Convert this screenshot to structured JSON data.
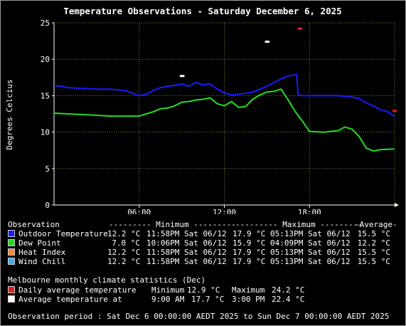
{
  "title": "Temperature Observations - Saturday December 6, 2025",
  "colors": {
    "outdoor": "#1a1aff",
    "dew": "#22dd22",
    "heat": "#ff8833",
    "wind": "#44aaee",
    "daily_avg": "#dd2222",
    "avg_at": "#ffffff",
    "grid": "#6a8a3a",
    "axis": "#ffffff"
  },
  "chart_data": {
    "type": "line",
    "ylabel": "Degrees Celcius",
    "ylim": [
      0,
      25
    ],
    "yticks": [
      0,
      5,
      10,
      15,
      20,
      25
    ],
    "xlim": [
      0,
      24
    ],
    "xticks": [
      {
        "x": 6,
        "label": "06:00"
      },
      {
        "x": 12,
        "label": "12:00"
      },
      {
        "x": 18,
        "label": "18:00"
      }
    ],
    "grid": true,
    "series": [
      {
        "name": "Outdoor Temperature",
        "color_key": "outdoor",
        "x": [
          0,
          0.5,
          1,
          2,
          3,
          4,
          5,
          6,
          6.5,
          7,
          7.5,
          8,
          8.5,
          9,
          9.5,
          10,
          10.5,
          11,
          11.5,
          12,
          12.5,
          13,
          13.5,
          14,
          14.5,
          15,
          15.5,
          16,
          16.5,
          16.8,
          17.1,
          17.2,
          17.5,
          18,
          19,
          20,
          21,
          21.5,
          22,
          22.5,
          23,
          23.5,
          23.98
        ],
        "y": [
          16.4,
          16.3,
          16.1,
          16.0,
          15.9,
          15.9,
          15.7,
          15.0,
          15.2,
          15.7,
          16.1,
          16.3,
          16.4,
          16.6,
          16.3,
          16.8,
          16.5,
          16.6,
          15.9,
          15.4,
          15.1,
          15.2,
          15.3,
          15.5,
          15.9,
          16.3,
          16.8,
          17.3,
          17.7,
          17.8,
          17.9,
          15.1,
          15.0,
          15.0,
          15.0,
          15.0,
          14.8,
          14.6,
          14.0,
          13.6,
          13.1,
          12.8,
          12.2
        ]
      },
      {
        "name": "Dew Point",
        "color_key": "dew",
        "x": [
          0,
          1,
          2,
          3,
          4,
          5,
          6,
          6.5,
          7,
          7.5,
          8,
          8.5,
          9,
          9.5,
          10,
          10.5,
          11,
          11.5,
          12,
          12.5,
          13,
          13.5,
          14,
          14.5,
          15,
          15.5,
          16,
          16.1,
          16.5,
          17,
          17.5,
          18,
          19,
          20,
          20.5,
          21,
          21.5,
          22,
          22.5,
          23,
          23.98
        ],
        "y": [
          12.6,
          12.5,
          12.4,
          12.3,
          12.2,
          12.2,
          12.2,
          12.5,
          12.8,
          13.2,
          13.3,
          13.6,
          14.1,
          14.2,
          14.4,
          14.5,
          14.7,
          13.9,
          13.6,
          14.2,
          13.4,
          13.5,
          14.5,
          15.1,
          15.5,
          15.6,
          15.9,
          15.6,
          14.4,
          12.8,
          11.5,
          10.1,
          10.0,
          10.2,
          10.7,
          10.4,
          9.4,
          7.8,
          7.4,
          7.6,
          7.7
        ]
      },
      {
        "name": "Wind Chill",
        "color_key": "wind",
        "x": [],
        "y": []
      },
      {
        "name": "Heat Index",
        "color_key": "heat",
        "x": [],
        "y": []
      }
    ],
    "markers": [
      {
        "series": "Average temperature",
        "color_key": "avg_at",
        "x": [
          9,
          15
        ],
        "y": [
          17.7,
          22.4
        ]
      },
      {
        "series": "Daily average temperature",
        "color_key": "daily_avg",
        "x": [
          17.3,
          23.98
        ],
        "y": [
          24.2,
          12.9
        ]
      }
    ]
  },
  "table": {
    "header": {
      "observation": "Observation",
      "minimum": "--------- Minimum ---------",
      "maximum": "--------- Maximum ---------",
      "average": "-Average-"
    },
    "rows": [
      {
        "label": "Outdoor Temperature",
        "color_key": "outdoor",
        "min_val": "12.2 °C",
        "min_time": "11:58PM Sat 06/12",
        "max_val": "17.9 °C",
        "max_time": "05:13PM Sat 06/12",
        "avg": "15.5 °C"
      },
      {
        "label": "Dew Point",
        "color_key": "dew",
        "min_val": "7.0 °C",
        "min_time": "10:06PM Sat 06/12",
        "max_val": "15.9 °C",
        "max_time": "04:09PM Sat 06/12",
        "avg": "12.2 °C"
      },
      {
        "label": "Heat Index",
        "color_key": "heat",
        "min_val": "12.2 °C",
        "min_time": "11:58PM Sat 06/12",
        "max_val": "17.9 °C",
        "max_time": "05:13PM Sat 06/12",
        "avg": "15.5 °C"
      },
      {
        "label": "Wind Chill",
        "color_key": "wind",
        "min_val": "12.2 °C",
        "min_time": "11:58PM Sat 06/12",
        "max_val": "17.9 °C",
        "max_time": "05:13PM Sat 06/12",
        "avg": "15.5 °C"
      }
    ]
  },
  "climate": {
    "heading": "Melbourne monthly climate statistics (Dec)",
    "rows": [
      {
        "label": "Daily average temperature",
        "color_key": "daily_avg",
        "min_label": "Minimum",
        "min_val": "12.9 °C",
        "max_label": "Maximum",
        "max_val": "24.2 °C"
      },
      {
        "label": "Average temperature at",
        "color_key": "avg_at",
        "min_label": "9:00 AM",
        "min_val": "17.7 °C",
        "max_label": "3:00 PM",
        "max_val": "22.4 °C"
      }
    ]
  },
  "footer": "Observation period : Sat Dec 6 00:00:00 AEDT 2025 to Sun Dec 7 00:00:00 AEDT 2025"
}
